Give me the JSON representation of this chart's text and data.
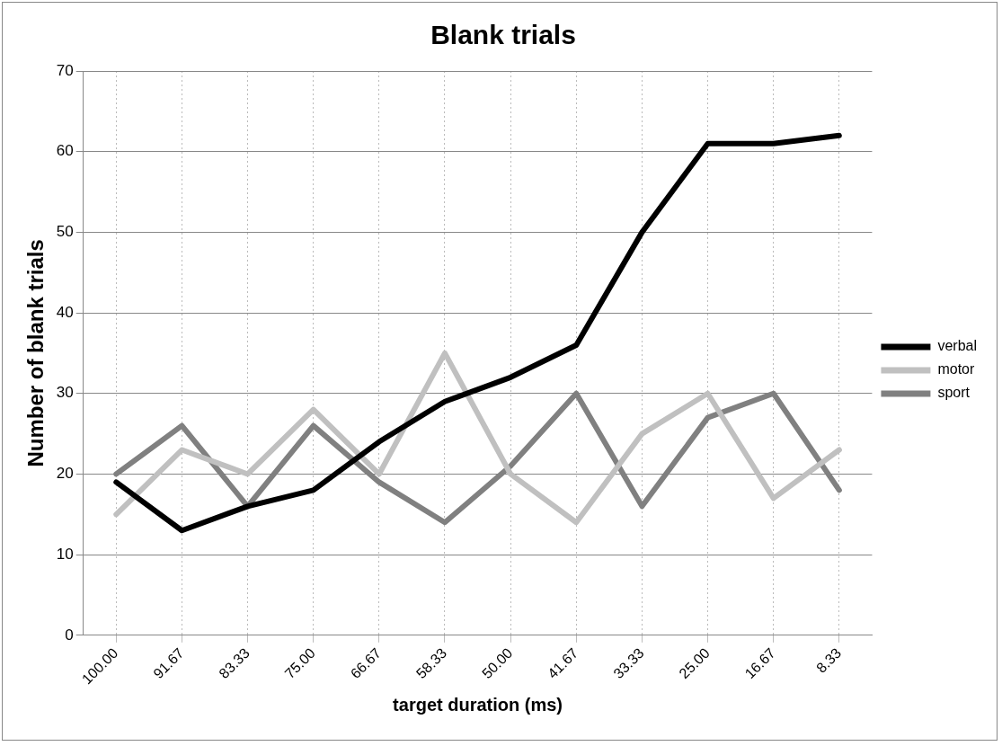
{
  "chart_data": {
    "type": "line",
    "title": "Blank trials",
    "xlabel": "target duration (ms)",
    "ylabel": "Number of blank trials",
    "categories": [
      "100.00",
      "91.67",
      "83.33",
      "75.00",
      "66.67",
      "58.33",
      "50.00",
      "41.67",
      "33.33",
      "25.00",
      "16.67",
      "8.33"
    ],
    "series": [
      {
        "name": "verbal",
        "color": "#000000",
        "values": [
          19,
          13,
          16,
          18,
          24,
          29,
          32,
          36,
          50,
          61,
          61,
          62
        ]
      },
      {
        "name": "motor",
        "color": "#c0c0c0",
        "values": [
          15,
          23,
          20,
          28,
          20,
          35,
          20,
          14,
          25,
          30,
          17,
          23
        ]
      },
      {
        "name": "sport",
        "color": "#808080",
        "values": [
          20,
          26,
          16,
          26,
          19,
          14,
          21,
          30,
          16,
          27,
          30,
          18
        ]
      }
    ],
    "ylim": [
      0,
      70
    ],
    "yticks": [
      0,
      10,
      20,
      30,
      40,
      50,
      60,
      70
    ],
    "grid": true,
    "legend": "right",
    "marker": "none",
    "line_style": "solid"
  }
}
